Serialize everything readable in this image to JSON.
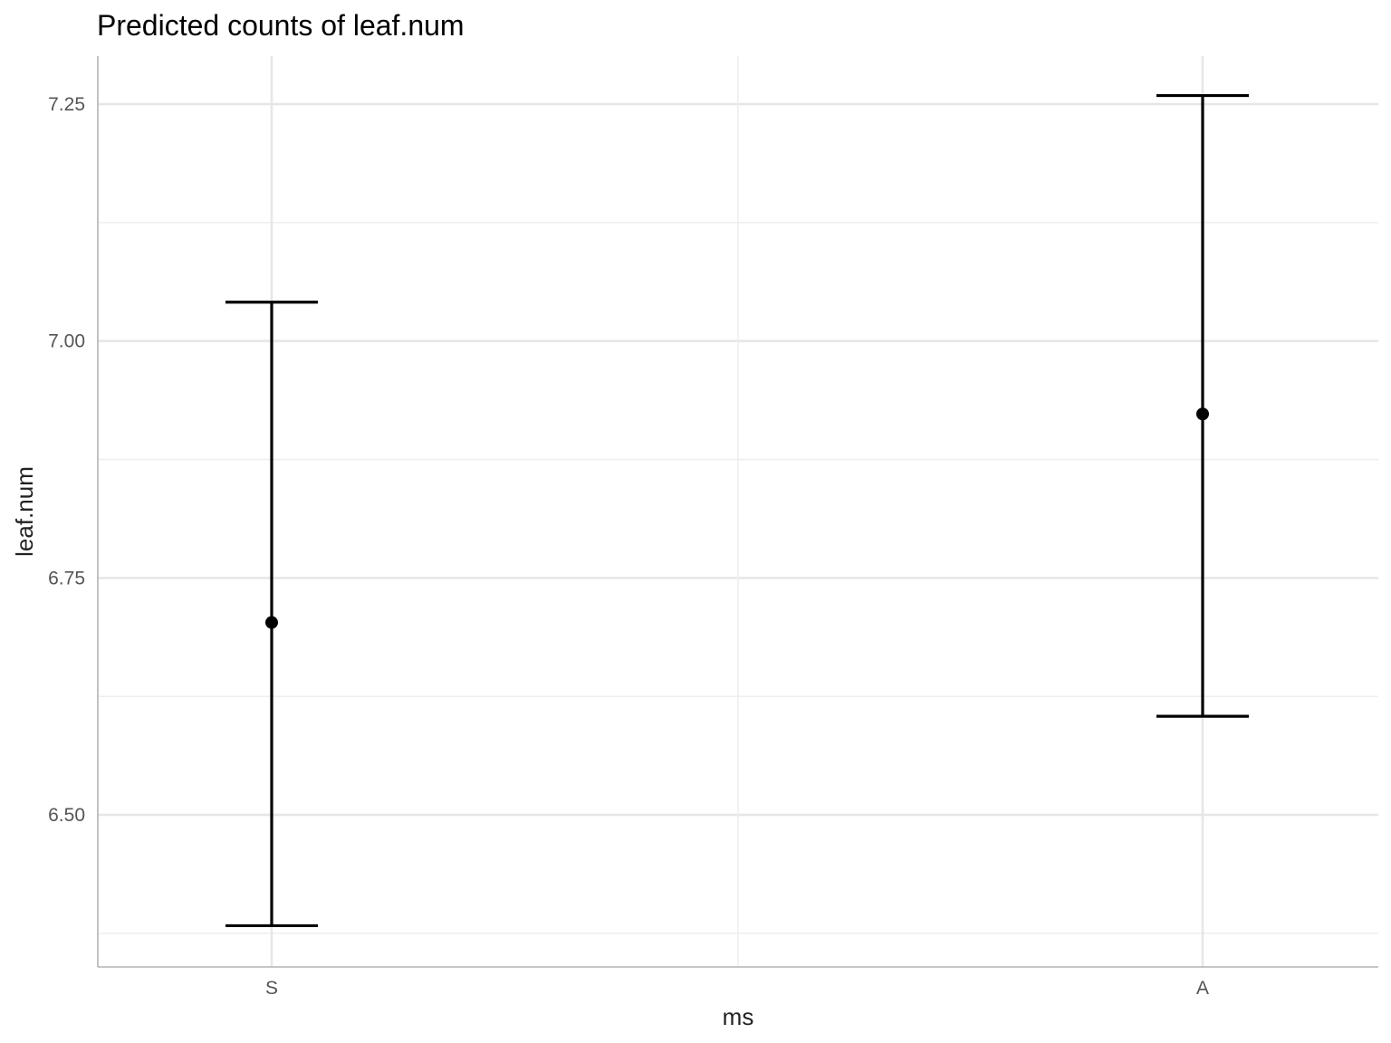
{
  "chart_data": {
    "type": "errorbar",
    "title": "Predicted counts of leaf.num",
    "xlabel": "ms",
    "ylabel": "leaf.num",
    "categories": [
      "S",
      "A"
    ],
    "y_ticks": [
      6.5,
      6.75,
      7.0,
      7.25
    ],
    "y_tick_labels": [
      "6.50",
      "6.75",
      "7.00",
      "7.25"
    ],
    "ylim": [
      6.365,
      7.3
    ],
    "grid": true,
    "points": [
      {
        "category": "S",
        "predicted": 6.703,
        "conf_low": 6.383,
        "conf_high": 7.041
      },
      {
        "category": "A",
        "predicted": 6.923,
        "conf_low": 6.604,
        "conf_high": 7.259
      }
    ],
    "colors": {
      "marks": "#000000",
      "grid": "#e6e6e6",
      "axis": "#b3b3b3",
      "tick_text": "#555555"
    }
  }
}
